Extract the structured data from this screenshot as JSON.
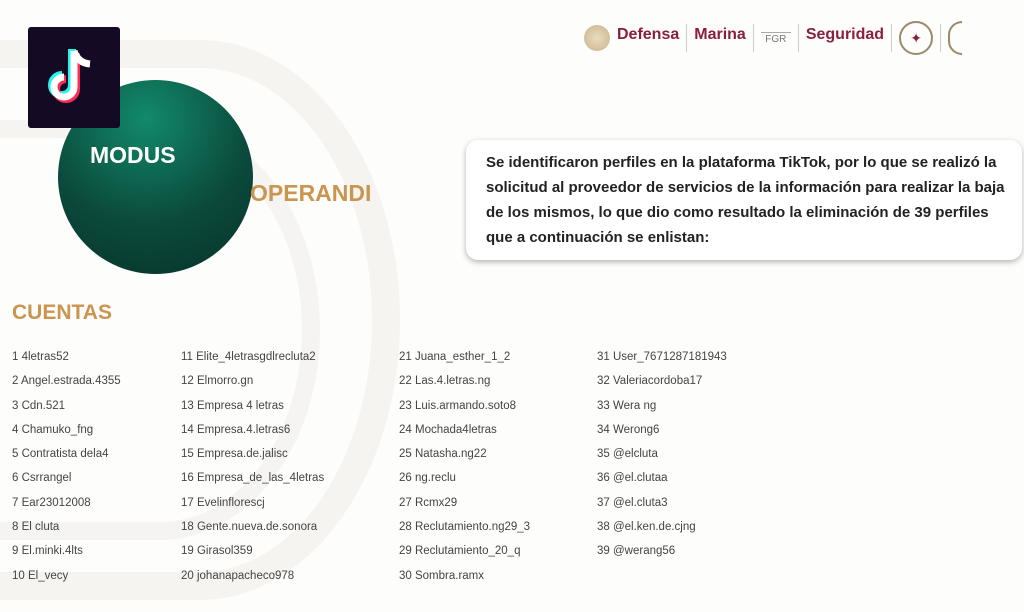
{
  "header": {
    "logos": [
      "Defensa",
      "Marina",
      "FGR",
      "Seguridad"
    ]
  },
  "hero": {
    "modus": "MODUS",
    "operandi": "OPERANDI"
  },
  "message": "Se identificaron perfiles en la plataforma TikTok, por lo que se realizó la solicitud al proveedor de servicios de la información para realizar la baja de los mismos, lo que dio como resultado la eliminación de 39 perfiles que a continuación se enlistan:",
  "section_title": "CUENTAS",
  "columns": [
    [
      "1 4letras52",
      "2 Angel.estrada.4355",
      "3 Cdn.521",
      "4 Chamuko_fng",
      "5 Contratista dela4",
      "6 Csrrangel",
      "7 Ear23012008",
      "8 El cluta",
      "9  El.minki.4lts",
      "10 El_vecy"
    ],
    [
      "11 Elite_4letrasgdlrecluta2",
      "12 Elmorro.gn",
      "13 Empresa 4 letras",
      "14 Empresa.4.letras6",
      "15 Empresa.de.jalisc",
      "16 Empresa_de_las_4letras",
      "17 Evelinflorescj",
      "18 Gente.nueva.de.sonora",
      "19 Girasol359",
      "20 johanapacheco978"
    ],
    [
      "21 Juana_esther_1_2",
      "22 Las.4.letras.ng",
      "23 Luis.armando.soto8",
      "24 Mochada4letras",
      "25 Natasha.ng22",
      "26 ng.reclu",
      "27 Rcmx29",
      "28 Reclutamiento.ng29_3",
      "29 Reclutamiento_20_q",
      "30 Sombra.ramx"
    ],
    [
      "31 User_7671287181943",
      "32 Valeriacordoba17",
      "33 Wera ng",
      "34 Werong6",
      "35 @elcluta",
      "36 @el.clutaa",
      "37 @el.cluta3",
      "38 @el.ken.de.cjng",
      "39 @werang56"
    ]
  ],
  "colors": {
    "accent_gold": "#c9954f",
    "brand_maroon": "#8a1f3f",
    "circle_green": "#0b4a3c"
  }
}
